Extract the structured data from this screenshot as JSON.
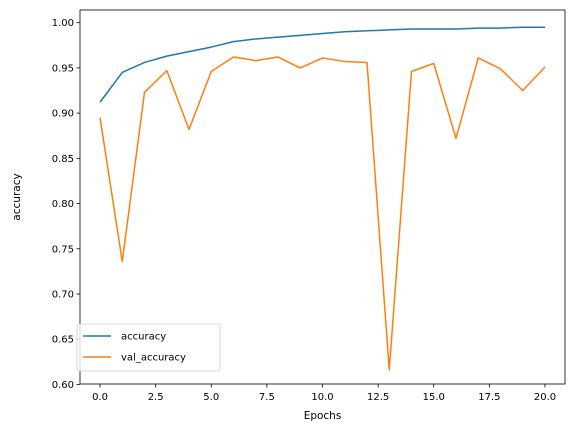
{
  "chart_data": {
    "type": "line",
    "title": "",
    "xlabel": "Epochs",
    "ylabel": "accuracy",
    "xlim": [
      -0.9,
      20.9
    ],
    "ylim": [
      0.6005,
      1.014
    ],
    "x_ticks": [
      0.0,
      2.5,
      5.0,
      7.5,
      10.0,
      12.5,
      15.0,
      17.5,
      20.0
    ],
    "x_tick_labels": [
      "0.0",
      "2.5",
      "5.0",
      "7.5",
      "10.0",
      "12.5",
      "15.0",
      "17.5",
      "20.0"
    ],
    "y_ticks": [
      0.6,
      0.65,
      0.7,
      0.75,
      0.8,
      0.85,
      0.9,
      0.95,
      1.0
    ],
    "y_tick_labels": [
      "0.60",
      "0.65",
      "0.70",
      "0.75",
      "0.80",
      "0.85",
      "0.90",
      "0.95",
      "1.00"
    ],
    "grid": false,
    "legend_position": "lower-left",
    "x": [
      0,
      1,
      2,
      3,
      4,
      5,
      6,
      7,
      8,
      9,
      10,
      11,
      12,
      13,
      14,
      15,
      16,
      17,
      18,
      19,
      20
    ],
    "series": [
      {
        "name": "accuracy",
        "color": "#1f77b4",
        "values": [
          0.912,
          0.945,
          0.956,
          0.963,
          0.968,
          0.973,
          0.979,
          0.982,
          0.984,
          0.986,
          0.988,
          0.99,
          0.991,
          0.992,
          0.993,
          0.993,
          0.993,
          0.994,
          0.994,
          0.995,
          0.995
        ]
      },
      {
        "name": "val_accuracy",
        "color": "#ff7f0e",
        "values": [
          0.895,
          0.736,
          0.923,
          0.947,
          0.882,
          0.946,
          0.962,
          0.958,
          0.962,
          0.95,
          0.961,
          0.957,
          0.956,
          0.616,
          0.946,
          0.955,
          0.872,
          0.961,
          0.949,
          0.925,
          0.951
        ]
      }
    ]
  }
}
